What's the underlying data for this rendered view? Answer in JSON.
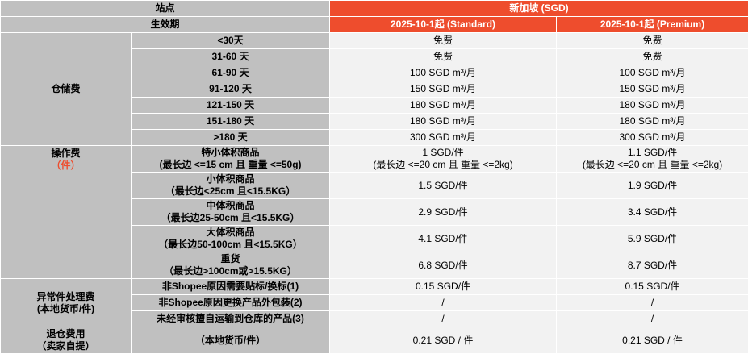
{
  "header": {
    "site_label": "站点",
    "site_value": "新加坡 (SGD)",
    "effective_label": "生效期",
    "col_standard": "2025-10-1起 (Standard)",
    "col_premium": "2025-10-1起 (Premium)"
  },
  "storage": {
    "label": "仓储费",
    "rows": [
      {
        "tier": "<30天",
        "standard": "免费",
        "premium": "免费"
      },
      {
        "tier": "31-60 天",
        "standard": "免费",
        "premium": "免费"
      },
      {
        "tier": "61-90 天",
        "standard": "100 SGD m³/月",
        "premium": "100 SGD m³/月"
      },
      {
        "tier": "91-120 天",
        "standard": "150 SGD m³/月",
        "premium": "150 SGD m³/月"
      },
      {
        "tier": "121-150 天",
        "standard": "180 SGD m³/月",
        "premium": "180 SGD m³/月"
      },
      {
        "tier": "151-180 天",
        "standard": "180 SGD m³/月",
        "premium": "180 SGD m³/月"
      },
      {
        "tier": ">180 天",
        "standard": "300 SGD m³/月",
        "premium": "300 SGD m³/月"
      }
    ]
  },
  "operation": {
    "label": "操作费",
    "unit_label": "（件）",
    "rows": [
      {
        "name": "特小体积商品",
        "spec": "(最长边 <=15 cm 且 重量 <=50g)",
        "standard": "1 SGD/件",
        "standard_note": "(最长边 <=20 cm 且 重量 <=2kg)",
        "premium": "1.1 SGD/件",
        "premium_note": "(最长边 <=20 cm 且 重量 <=2kg)"
      },
      {
        "name": "小体积商品",
        "spec": "（最长边<25cm 且<15.5KG）",
        "standard": "1.5 SGD/件",
        "premium": "1.9 SGD/件"
      },
      {
        "name": "中体积商品",
        "spec": "（最长边25-50cm 且<15.5KG）",
        "standard": "2.9 SGD/件",
        "premium": "3.4 SGD/件"
      },
      {
        "name": "大体积商品",
        "spec": "（最长边50-100cm 且<15.5KG）",
        "standard": "4.1 SGD/件",
        "premium": "5.9 SGD/件"
      },
      {
        "name": "重货",
        "spec": "（最长边>100cm或>15.5KG）",
        "standard": "6.8 SGD/件",
        "premium": "8.7 SGD/件"
      }
    ]
  },
  "exception": {
    "label": "异常件处理费",
    "sub_label": "(本地货币/件)",
    "rows": [
      {
        "name": "非Shopee原因需要贴标/换标(1)",
        "standard": "0.15 SGD/件",
        "premium": "0.15 SGD/件"
      },
      {
        "name": "非Shopee原因更换产品外包装(2)",
        "standard": "/",
        "premium": "/"
      },
      {
        "name": "未经审核擅自运输到仓库的产品(3)",
        "standard": "/",
        "premium": "/"
      }
    ]
  },
  "return_fee": {
    "label": "退仓费用",
    "sub_label": "（卖家自提）",
    "unit": "（本地货币/件）",
    "standard": "0.21 SGD / 件",
    "premium": "0.21 SGD / 件"
  }
}
